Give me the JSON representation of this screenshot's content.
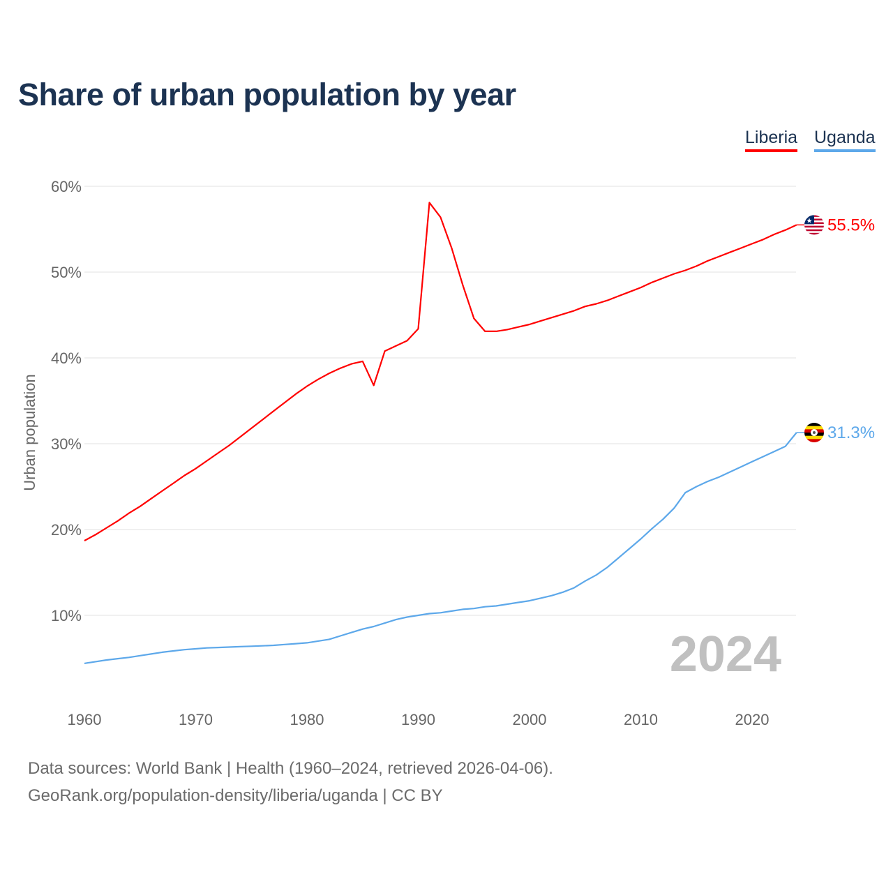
{
  "chart_data": {
    "type": "line",
    "title": "Share of urban population by year",
    "xlabel": "",
    "ylabel": "Urban population",
    "xlim": [
      1960,
      2024
    ],
    "ylim": [
      0,
      60
    ],
    "yticks": [
      10,
      20,
      30,
      40,
      50,
      60
    ],
    "ytick_labels": [
      "10%",
      "20%",
      "30%",
      "40%",
      "50%",
      "60%"
    ],
    "xticks": [
      1960,
      1970,
      1980,
      1990,
      2000,
      2010,
      2020
    ],
    "xtick_labels": [
      "1960",
      "1970",
      "1980",
      "1990",
      "2000",
      "2010",
      "2020"
    ],
    "grid": true,
    "legend_position": "top-right",
    "year_watermark": "2024",
    "x": [
      1960,
      1961,
      1962,
      1963,
      1964,
      1965,
      1966,
      1967,
      1968,
      1969,
      1970,
      1971,
      1972,
      1973,
      1974,
      1975,
      1976,
      1977,
      1978,
      1979,
      1980,
      1981,
      1982,
      1983,
      1984,
      1985,
      1986,
      1987,
      1988,
      1989,
      1990,
      1991,
      1992,
      1993,
      1994,
      1995,
      1996,
      1997,
      1998,
      1999,
      2000,
      2001,
      2002,
      2003,
      2004,
      2005,
      2006,
      2007,
      2008,
      2009,
      2010,
      2011,
      2012,
      2013,
      2014,
      2015,
      2016,
      2017,
      2018,
      2019,
      2020,
      2021,
      2022,
      2023,
      2024
    ],
    "series": [
      {
        "name": "Liberia",
        "color": "#ff0000",
        "end_label": "55.5%",
        "flag": "liberia-flag",
        "values": [
          18.7,
          19.4,
          20.2,
          21.0,
          21.9,
          22.7,
          23.6,
          24.5,
          25.4,
          26.3,
          27.1,
          28.0,
          28.9,
          29.8,
          30.8,
          31.8,
          32.8,
          33.8,
          34.8,
          35.8,
          36.7,
          37.5,
          38.2,
          38.8,
          39.3,
          39.6,
          36.8,
          40.8,
          41.4,
          42.0,
          43.4,
          58.1,
          56.4,
          52.8,
          48.5,
          44.6,
          43.1,
          43.1,
          43.3,
          43.6,
          43.9,
          44.3,
          44.7,
          45.1,
          45.5,
          46.0,
          46.3,
          46.7,
          47.2,
          47.7,
          48.2,
          48.8,
          49.3,
          49.8,
          50.2,
          50.7,
          51.3,
          51.8,
          52.3,
          52.8,
          53.3,
          53.8,
          54.4,
          54.9,
          55.5
        ]
      },
      {
        "name": "Uganda",
        "color": "#5da8ea",
        "end_label": "31.3%",
        "flag": "uganda-flag",
        "values": [
          4.4,
          4.6,
          4.8,
          4.95,
          5.1,
          5.3,
          5.5,
          5.7,
          5.85,
          6.0,
          6.1,
          6.2,
          6.25,
          6.3,
          6.35,
          6.4,
          6.45,
          6.5,
          6.6,
          6.7,
          6.8,
          7.0,
          7.2,
          7.6,
          8.0,
          8.4,
          8.7,
          9.1,
          9.5,
          9.8,
          10.0,
          10.2,
          10.3,
          10.5,
          10.7,
          10.8,
          11.0,
          11.1,
          11.3,
          11.5,
          11.7,
          12.0,
          12.3,
          12.7,
          13.2,
          14.0,
          14.7,
          15.6,
          16.7,
          17.8,
          18.9,
          20.1,
          21.2,
          22.5,
          24.3,
          25.0,
          25.6,
          26.1,
          26.7,
          27.3,
          27.9,
          28.5,
          29.1,
          29.7,
          31.3
        ]
      }
    ]
  },
  "footer": {
    "line1": "Data sources: World Bank | Health (1960–2024, retrieved 2026-04-06).",
    "line2": "GeoRank.org/population-density/liberia/uganda | CC BY"
  }
}
